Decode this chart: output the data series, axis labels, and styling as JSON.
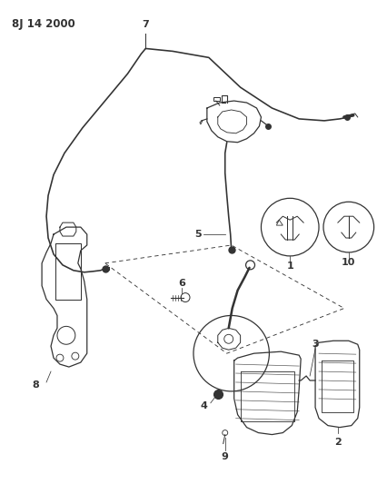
{
  "title": "8J 14 2000",
  "bg_color": "#ffffff",
  "line_color": "#333333",
  "fig_width": 4.15,
  "fig_height": 5.33,
  "dpi": 100
}
